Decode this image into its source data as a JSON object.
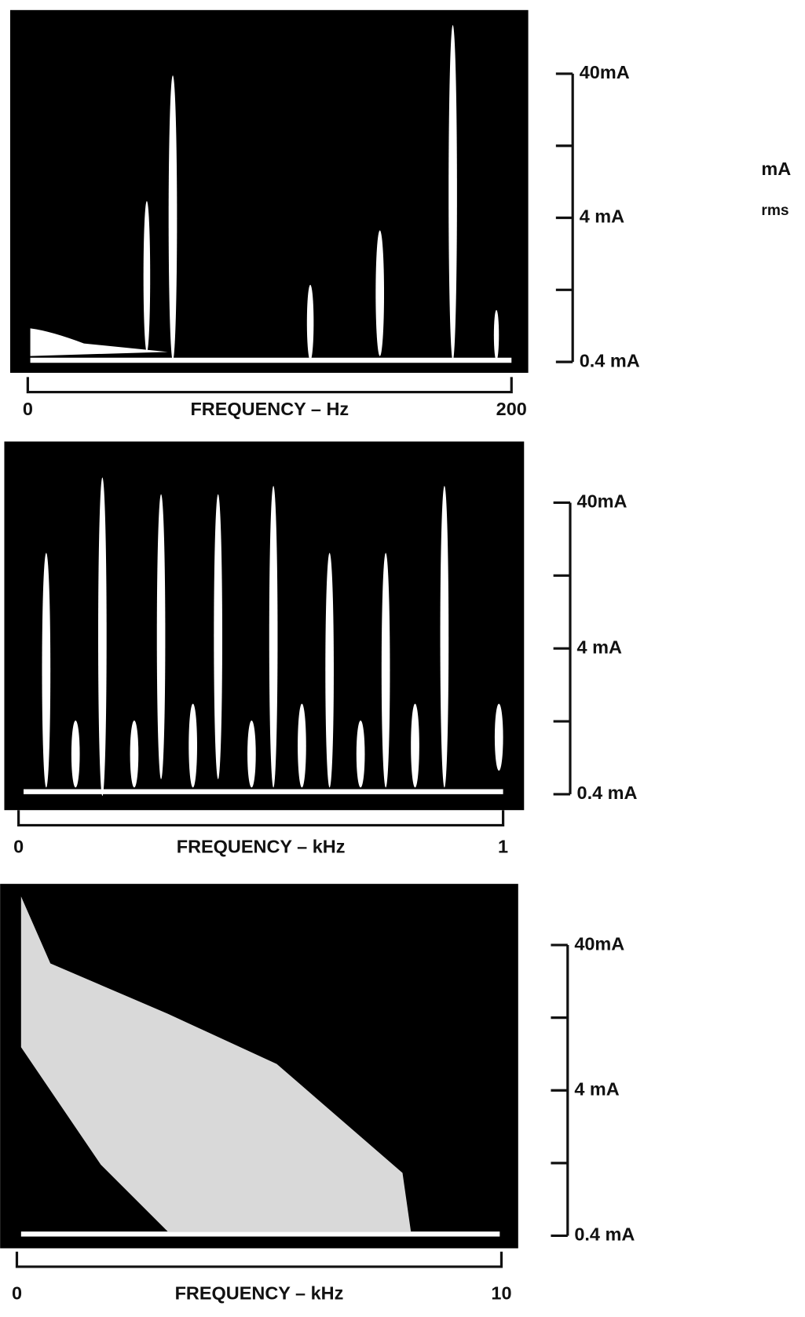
{
  "side_labels": [
    "mA",
    "rms"
  ],
  "panels": [
    {
      "scale_labels": [
        "40mA",
        "4 mA",
        "0.4 mA"
      ],
      "x_start": "0",
      "x_title": "FREQUENCY – Hz",
      "x_end": "200"
    },
    {
      "scale_labels": [
        "40mA",
        "4 mA",
        "0.4 mA"
      ],
      "x_start": "0",
      "x_title": "FREQUENCY – kHz",
      "x_end": "1"
    },
    {
      "scale_labels": [
        "40mA",
        "4 mA",
        "0.4 mA"
      ],
      "x_start": "0",
      "x_title": "FREQUENCY – kHz",
      "x_end": "10"
    }
  ]
}
